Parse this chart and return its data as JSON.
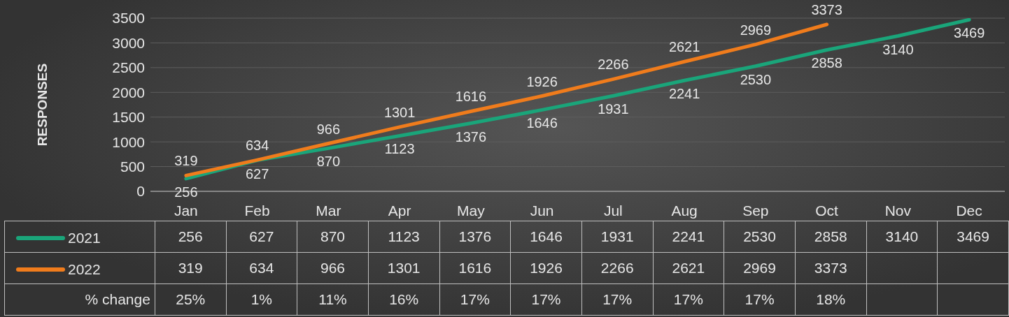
{
  "chart_data": {
    "type": "line",
    "ylabel": "RESPONSES",
    "categories": [
      "Jan",
      "Feb",
      "Mar",
      "Apr",
      "May",
      "Jun",
      "Jul",
      "Aug",
      "Sep",
      "Oct",
      "Nov",
      "Dec"
    ],
    "series": [
      {
        "name": "2021",
        "color": "#1aa57a",
        "values": [
          256,
          627,
          870,
          1123,
          1376,
          1646,
          1931,
          2241,
          2530,
          2858,
          3140,
          3469
        ],
        "value_labels": [
          "256",
          "627",
          "870",
          "1123",
          "1376",
          "1646",
          "1931",
          "2241",
          "2530",
          "2858",
          "3140",
          "3469"
        ]
      },
      {
        "name": "2022",
        "color": "#f07c1c",
        "values": [
          319,
          634,
          966,
          1301,
          1616,
          1926,
          2266,
          2621,
          2969,
          3373,
          null,
          null
        ],
        "value_labels": [
          "319",
          "634",
          "966",
          "1301",
          "1616",
          "1926",
          "2266",
          "2621",
          "2969",
          "3373",
          null,
          null
        ]
      }
    ],
    "ylim": [
      0,
      3500
    ],
    "yticks": [
      0,
      500,
      1000,
      1500,
      2000,
      2500,
      3000,
      3500
    ],
    "grid": "y",
    "legend": "bottom",
    "marker": "none",
    "line_style": "solid",
    "annotations": [
      "% change",
      "25%",
      "1%",
      "11%",
      "16%",
      "17%",
      "17%",
      "17%",
      "17%",
      "17%",
      "18%"
    ]
  }
}
